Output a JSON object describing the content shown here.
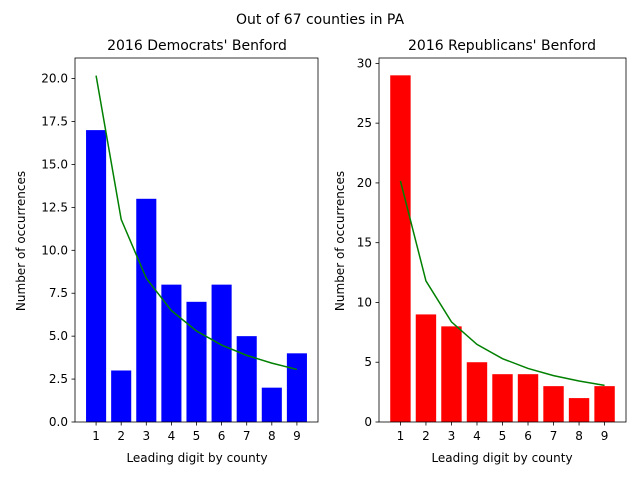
{
  "figure": {
    "suptitle": "Out of 67 counties in PA"
  },
  "chart_data": [
    {
      "type": "bar",
      "title": "2016 Democrats' Benford",
      "xlabel": "Leading digit by county",
      "ylabel": "Number of occurrences",
      "categories": [
        "1",
        "2",
        "3",
        "4",
        "5",
        "6",
        "7",
        "8",
        "9"
      ],
      "series": [
        {
          "kind": "bar",
          "color": "#0000ff",
          "values": [
            17,
            3,
            13,
            8,
            7,
            8,
            5,
            2,
            4
          ]
        },
        {
          "kind": "line",
          "color": "#008000",
          "values": [
            20.17,
            11.8,
            8.37,
            6.49,
            5.3,
            4.48,
            3.88,
            3.43,
            3.06
          ]
        }
      ],
      "ylim": [
        0,
        21.2
      ],
      "yticks": [
        0,
        2.5,
        5,
        7.5,
        10,
        12.5,
        15,
        17.5,
        20
      ],
      "ytick_labels": [
        "0.0",
        "2.5",
        "5.0",
        "7.5",
        "10.0",
        "12.5",
        "15.0",
        "17.5",
        "20.0"
      ],
      "grid": false,
      "legend": "none"
    },
    {
      "type": "bar",
      "title": "2016 Republicans' Benford",
      "xlabel": "Leading digit by county",
      "ylabel": "Number of occurrences",
      "categories": [
        "1",
        "2",
        "3",
        "4",
        "5",
        "6",
        "7",
        "8",
        "9"
      ],
      "series": [
        {
          "kind": "bar",
          "color": "#ff0000",
          "values": [
            29,
            9,
            8,
            5,
            4,
            4,
            3,
            2,
            3
          ]
        },
        {
          "kind": "line",
          "color": "#008000",
          "values": [
            20.17,
            11.8,
            8.37,
            6.49,
            5.3,
            4.48,
            3.88,
            3.43,
            3.06
          ]
        }
      ],
      "ylim": [
        0,
        30.45
      ],
      "yticks": [
        0,
        5,
        10,
        15,
        20,
        25,
        30
      ],
      "ytick_labels": [
        "0",
        "5",
        "10",
        "15",
        "20",
        "25",
        "30"
      ],
      "grid": false,
      "legend": "none"
    }
  ]
}
